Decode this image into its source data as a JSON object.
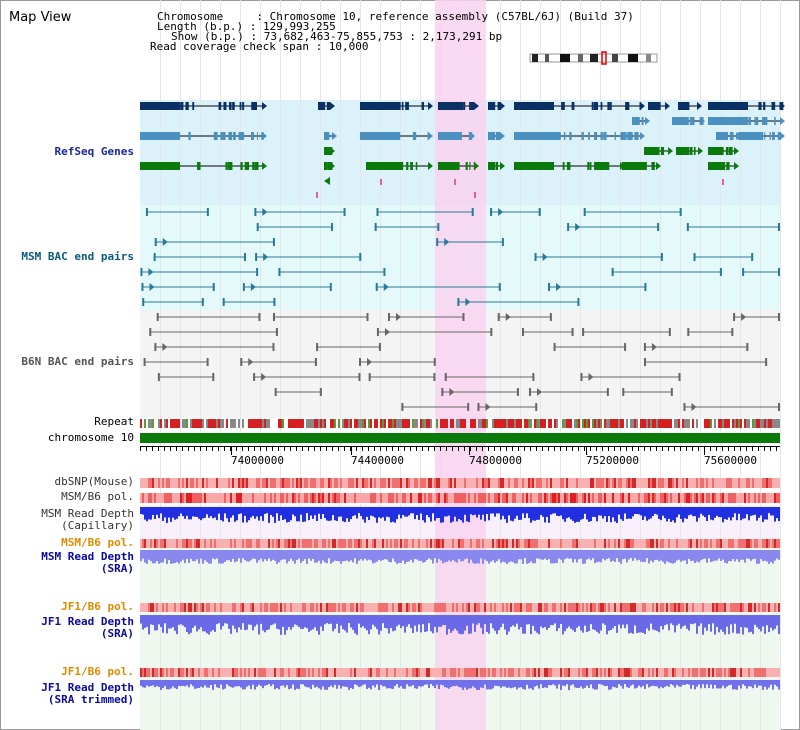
{
  "title": "Map View",
  "info": {
    "line1": "Chromosome     : Chromosome 10, reference assembly (C57BL/6J) (Build 37)",
    "line2": "Length (b.p.) : 129,993,255",
    "line3": "Show (b.p.) : 73,682,463-75,855,753 : 2,173,291 bp",
    "line4": "Read coverage check span : 10,000"
  },
  "tracks": {
    "refseq": "RefSeq Genes",
    "msm_bac": "MSM BAC end pairs",
    "b6n_bac": "B6N BAC end pairs",
    "repeat": "Repeat",
    "chrom": "chromosome 10",
    "dbsnp": "dbSNP(Mouse)",
    "msm_pol1": "MSM/B6 pol.",
    "msm_depth_cap_1": "MSM Read Depth",
    "msm_depth_cap_2": "(Capillary)",
    "msm_pol2": "MSM/B6 pol.",
    "msm_depth_sra_1": "MSM Read Depth",
    "msm_depth_sra_2": "(SRA)",
    "jf1_pol1": "JF1/B6 pol.",
    "jf1_depth_1": "JF1 Read Depth",
    "jf1_depth_2": "(SRA)",
    "jf1_pol2": "JF1/B6 pol.",
    "jf1_depth_tr_1": "JF1 Read Depth",
    "jf1_depth_tr_2": "(SRA trimmed)"
  },
  "axis": {
    "ticks": [
      "74000000",
      "74400000",
      "74800000",
      "75200000",
      "75600000"
    ]
  },
  "colors": {
    "refseq_bg": "#dcf2fb",
    "bac_bg": "#e4fafa",
    "b6n_bg": "#f4f4f4",
    "highlight": "#f8d4f0",
    "gene_dark": "#0a3064",
    "gene_mid": "#4a90c0",
    "gene_green": "#0a7a0a",
    "msm_label": "#0a5a7a",
    "refseq_label": "#1a28a0",
    "depth_label": "#0a0aa0",
    "pol_label": "#e08a00",
    "chrom_bar": "#0a7a0a"
  }
}
